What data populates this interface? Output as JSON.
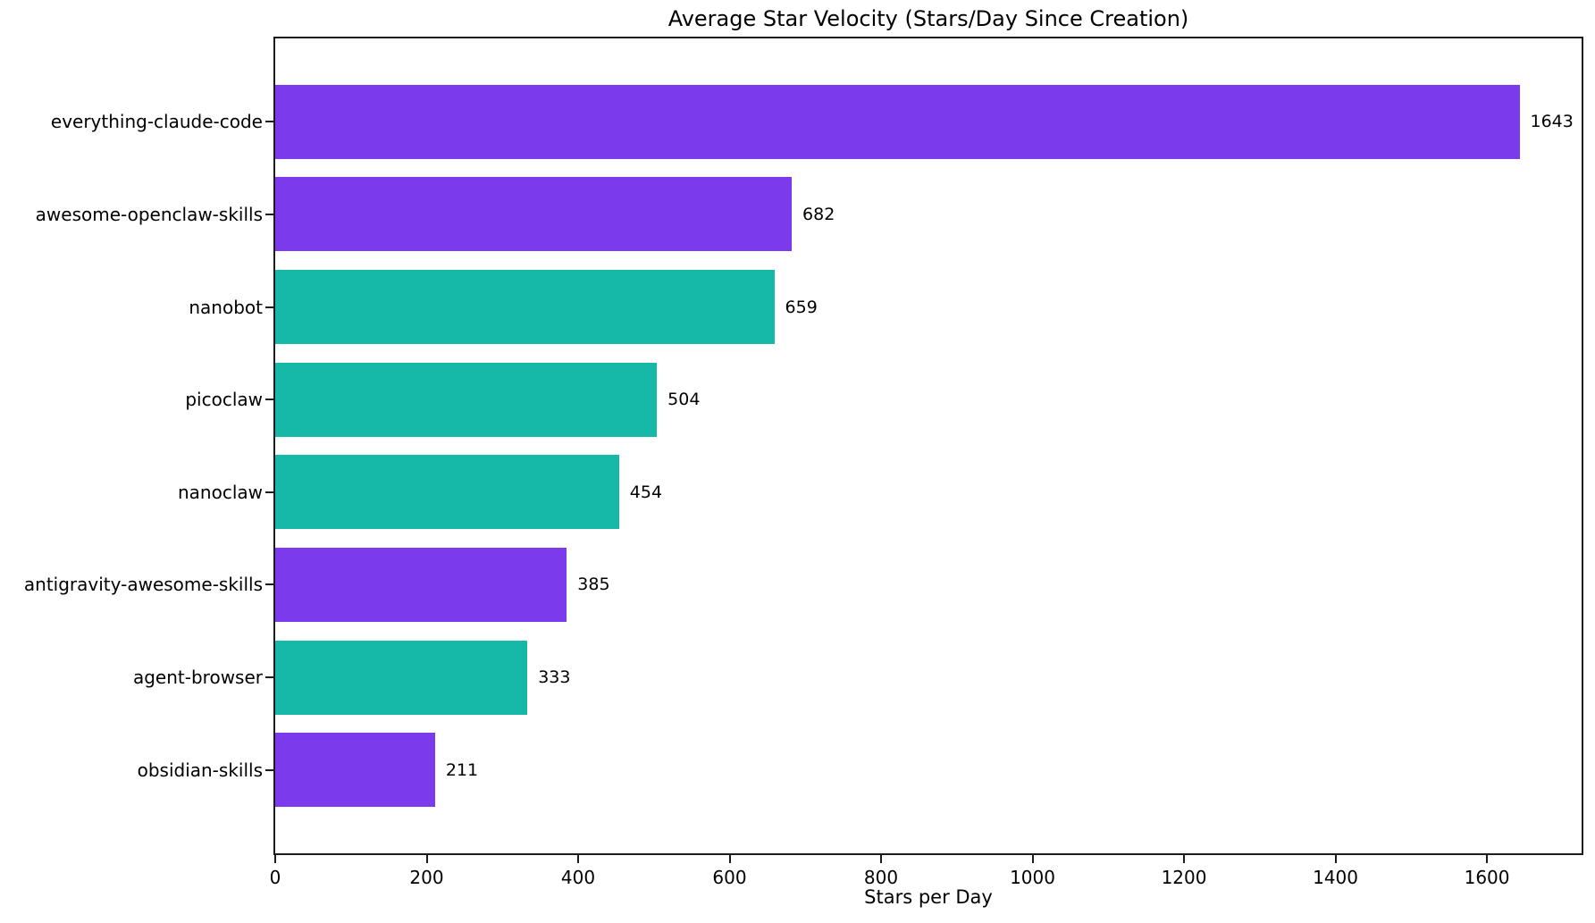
{
  "chart_data": {
    "type": "bar",
    "orientation": "horizontal",
    "title": "Average Star Velocity (Stars/Day Since Creation)",
    "xlabel": "Stars per Day",
    "ylabel": "",
    "categories": [
      "everything-claude-code",
      "awesome-openclaw-skills",
      "nanobot",
      "picoclaw",
      "nanoclaw",
      "antigravity-awesome-skills",
      "agent-browser",
      "obsidian-skills"
    ],
    "values": [
      1643,
      682,
      659,
      504,
      454,
      385,
      333,
      211
    ],
    "value_labels": [
      "1643",
      "682",
      "659",
      "504",
      "454",
      "385",
      "333",
      "211"
    ],
    "bar_colors": [
      "#7C3AED",
      "#7C3AED",
      "#16B8A8",
      "#16B8A8",
      "#16B8A8",
      "#7C3AED",
      "#16B8A8",
      "#7C3AED"
    ],
    "colors": {
      "purple": "#7C3AED",
      "teal": "#16B8A8",
      "spine": "#1c1c1c",
      "text": "#000000",
      "background": "#ffffff"
    },
    "xlim": [
      0,
      1725
    ],
    "xticks": [
      0,
      200,
      400,
      600,
      800,
      1000,
      1200,
      1400,
      1600
    ],
    "xtick_labels": [
      "0",
      "200",
      "400",
      "600",
      "800",
      "1000",
      "1200",
      "1400",
      "1600"
    ],
    "grid": false,
    "legend": null,
    "bar_relative_height": 0.8
  }
}
